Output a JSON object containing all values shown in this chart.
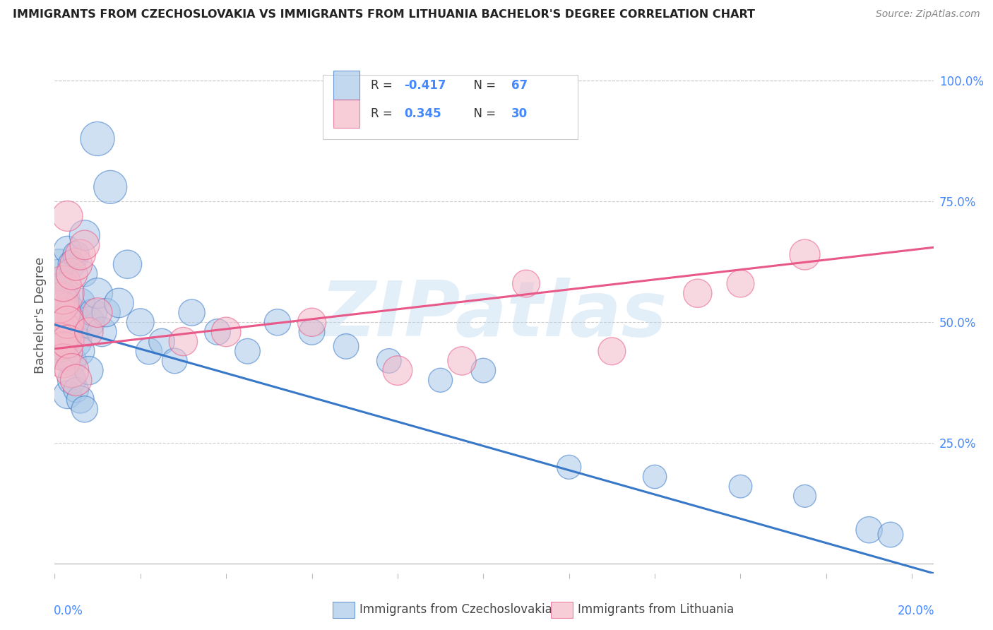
{
  "title": "IMMIGRANTS FROM CZECHOSLOVAKIA VS IMMIGRANTS FROM LITHUANIA BACHELOR'S DEGREE CORRELATION CHART",
  "source": "Source: ZipAtlas.com",
  "ylabel": "Bachelor's Degree",
  "right_yticks": [
    "100.0%",
    "75.0%",
    "50.0%",
    "25.0%"
  ],
  "right_ytick_vals": [
    1.0,
    0.75,
    0.5,
    0.25
  ],
  "color_blue": "#a8c8e8",
  "color_pink": "#f4b8c8",
  "color_blue_line": "#3878c8",
  "color_pink_line": "#e85888",
  "watermark": "ZIPatlas",
  "background_color": "#ffffff",
  "xlim": [
    0.0,
    0.205
  ],
  "ylim": [
    -0.02,
    1.05
  ],
  "blue_r": "-0.417",
  "blue_n": "67",
  "pink_r": "0.345",
  "pink_n": "30",
  "blue_line_x0": 0.0,
  "blue_line_y0": 0.495,
  "blue_line_x1": 0.205,
  "blue_line_y1": -0.02,
  "pink_line_x0": 0.0,
  "pink_line_y0": 0.445,
  "pink_line_x1": 0.205,
  "pink_line_y1": 0.655,
  "blue_x": [
    0.001,
    0.001,
    0.001,
    0.001,
    0.001,
    0.001,
    0.001,
    0.001,
    0.001,
    0.001,
    0.002,
    0.002,
    0.002,
    0.002,
    0.002,
    0.002,
    0.002,
    0.003,
    0.003,
    0.003,
    0.003,
    0.003,
    0.003,
    0.004,
    0.004,
    0.004,
    0.004,
    0.004,
    0.005,
    0.005,
    0.005,
    0.005,
    0.006,
    0.006,
    0.006,
    0.007,
    0.007,
    0.007,
    0.008,
    0.008,
    0.009,
    0.01,
    0.01,
    0.011,
    0.012,
    0.013,
    0.015,
    0.017,
    0.02,
    0.022,
    0.025,
    0.028,
    0.032,
    0.038,
    0.045,
    0.052,
    0.06,
    0.068,
    0.078,
    0.09,
    0.1,
    0.12,
    0.14,
    0.16,
    0.175,
    0.19,
    0.195
  ],
  "blue_y": [
    0.5,
    0.52,
    0.48,
    0.54,
    0.46,
    0.56,
    0.58,
    0.44,
    0.6,
    0.62,
    0.5,
    0.53,
    0.47,
    0.55,
    0.45,
    0.57,
    0.43,
    0.51,
    0.49,
    0.53,
    0.47,
    0.65,
    0.35,
    0.52,
    0.48,
    0.42,
    0.38,
    0.62,
    0.5,
    0.46,
    0.64,
    0.36,
    0.54,
    0.44,
    0.34,
    0.68,
    0.32,
    0.6,
    0.5,
    0.4,
    0.52,
    0.88,
    0.56,
    0.48,
    0.52,
    0.78,
    0.54,
    0.62,
    0.5,
    0.44,
    0.46,
    0.42,
    0.52,
    0.48,
    0.44,
    0.5,
    0.48,
    0.45,
    0.42,
    0.38,
    0.4,
    0.2,
    0.18,
    0.16,
    0.14,
    0.07,
    0.06
  ],
  "blue_sz": [
    60,
    55,
    50,
    58,
    52,
    65,
    70,
    48,
    75,
    80,
    100,
    90,
    85,
    95,
    80,
    75,
    70,
    88,
    82,
    78,
    72,
    65,
    68,
    85,
    80,
    75,
    70,
    65,
    90,
    85,
    60,
    55,
    75,
    70,
    65,
    80,
    60,
    55,
    85,
    70,
    65,
    100,
    80,
    75,
    70,
    95,
    75,
    70,
    65,
    60,
    58,
    55,
    60,
    58,
    55,
    60,
    58,
    55,
    52,
    50,
    52,
    50,
    48,
    46,
    44,
    60,
    55
  ],
  "pink_x": [
    0.001,
    0.001,
    0.001,
    0.001,
    0.001,
    0.002,
    0.002,
    0.002,
    0.002,
    0.003,
    0.003,
    0.003,
    0.004,
    0.004,
    0.005,
    0.005,
    0.006,
    0.007,
    0.008,
    0.01,
    0.03,
    0.04,
    0.06,
    0.08,
    0.095,
    0.11,
    0.13,
    0.15,
    0.16,
    0.175
  ],
  "pink_y": [
    0.5,
    0.48,
    0.52,
    0.54,
    0.46,
    0.56,
    0.44,
    0.58,
    0.42,
    0.5,
    0.72,
    0.46,
    0.6,
    0.4,
    0.62,
    0.38,
    0.64,
    0.66,
    0.48,
    0.52,
    0.46,
    0.48,
    0.5,
    0.4,
    0.42,
    0.58,
    0.44,
    0.56,
    0.58,
    0.64
  ],
  "pink_sz": [
    220,
    180,
    160,
    140,
    120,
    150,
    130,
    110,
    100,
    90,
    80,
    95,
    85,
    100,
    90,
    85,
    80,
    75,
    70,
    75,
    70,
    75,
    70,
    75,
    70,
    65,
    65,
    70,
    65,
    80
  ]
}
